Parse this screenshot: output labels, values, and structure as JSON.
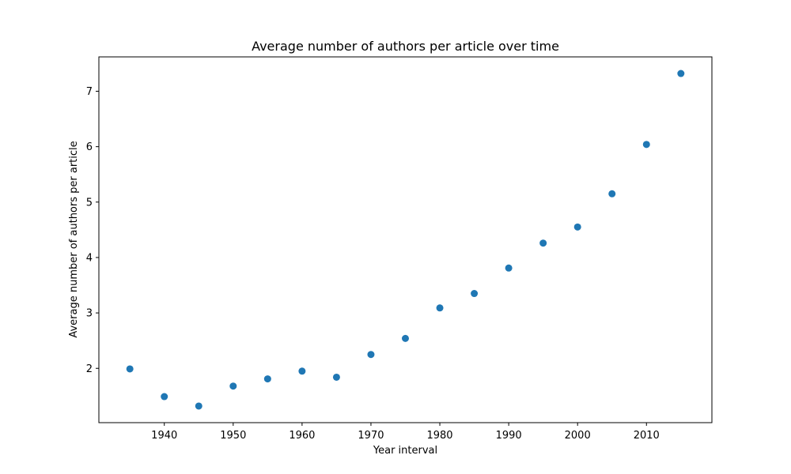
{
  "colors": {
    "marker": "#1f77b4",
    "axis": "#000000",
    "background": "#ffffff"
  },
  "chart_data": {
    "type": "scatter",
    "title": "Average number of authors per article over time",
    "xlabel": "Year interval",
    "ylabel": "Average number of authors per article",
    "x": [
      1935,
      1940,
      1945,
      1950,
      1955,
      1960,
      1965,
      1970,
      1975,
      1980,
      1985,
      1990,
      1995,
      2000,
      2005,
      2010,
      2015
    ],
    "y": [
      1.99,
      1.49,
      1.32,
      1.68,
      1.81,
      1.95,
      1.84,
      2.25,
      2.54,
      3.09,
      3.35,
      3.81,
      4.26,
      4.55,
      5.15,
      6.04,
      7.32
    ],
    "xlim": [
      1930.5,
      2019.5
    ],
    "ylim": [
      1.02,
      7.62
    ],
    "xticks": [
      1940,
      1950,
      1960,
      1970,
      1980,
      1990,
      2000,
      2010
    ],
    "yticks": [
      2,
      3,
      4,
      5,
      6,
      7
    ],
    "grid": false,
    "legend": "none"
  }
}
